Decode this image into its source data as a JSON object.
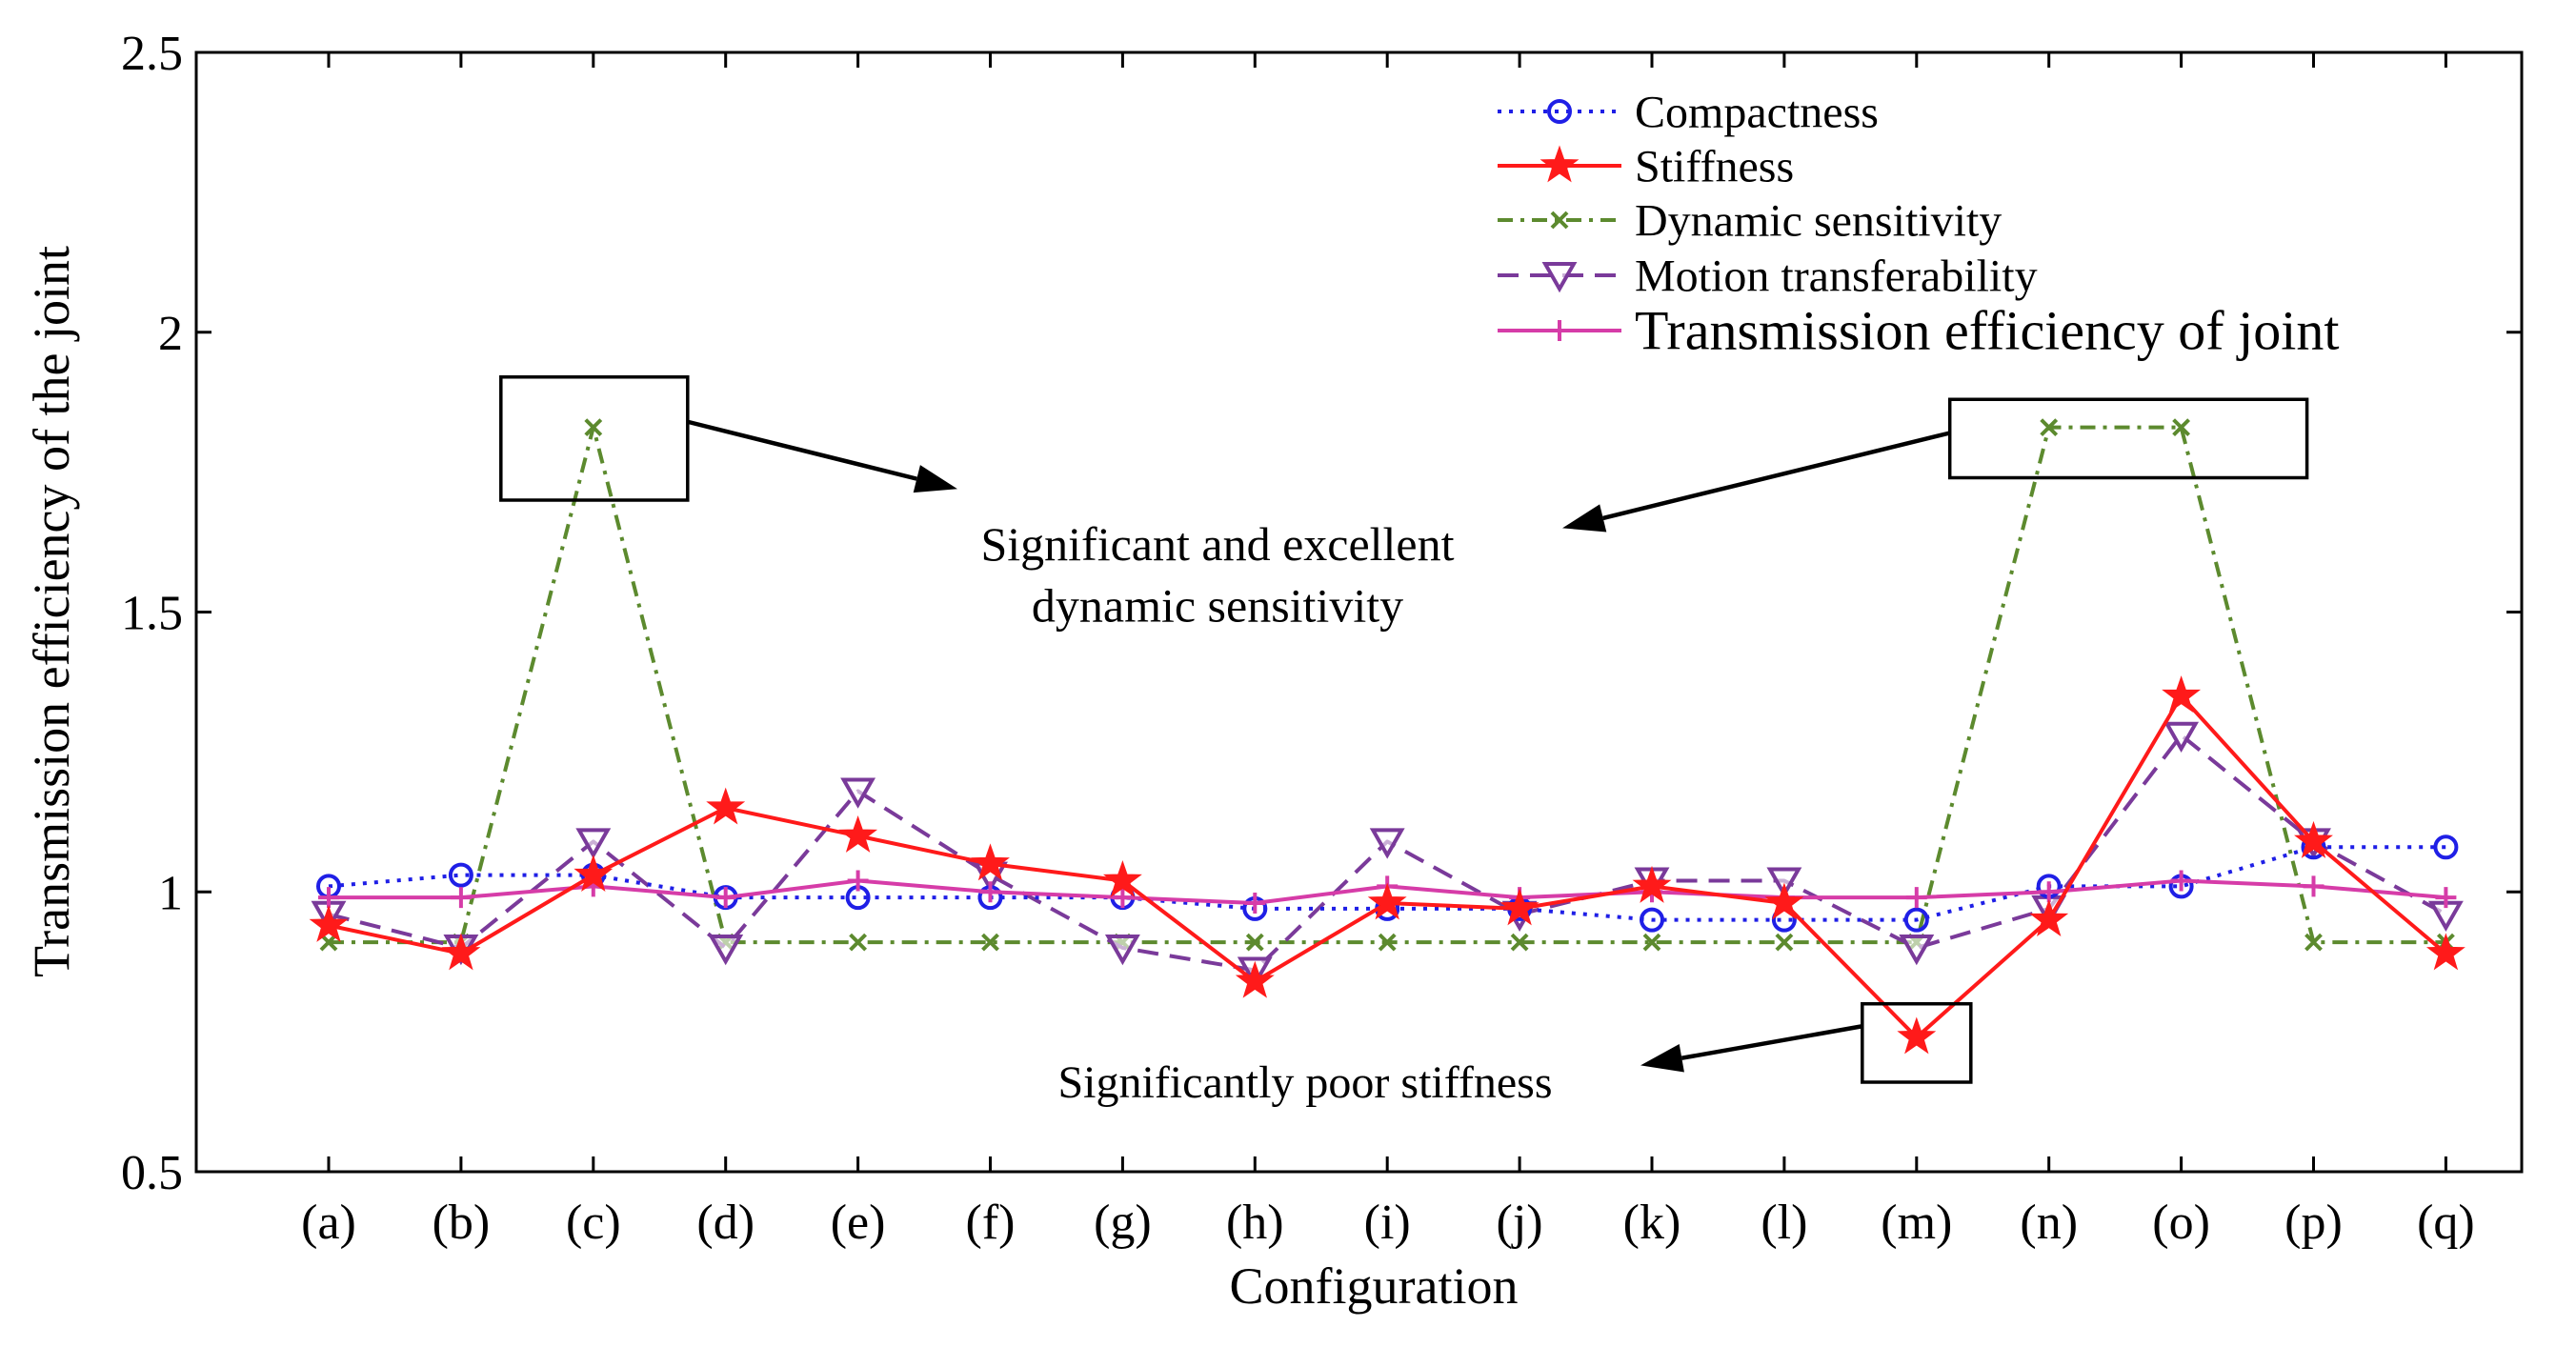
{
  "chart_data": {
    "type": "line",
    "title": "",
    "xlabel": "Configuration",
    "ylabel": "Transmission efficiency of the joint",
    "ylim": [
      0.5,
      2.5
    ],
    "yticks": [
      "0.5",
      "1",
      "1.5",
      "2",
      "2.5"
    ],
    "categories": [
      "(a)",
      "(b)",
      "(c)",
      "(d)",
      "(e)",
      "(f)",
      "(g)",
      "(h)",
      "(i)",
      "(j)",
      "(k)",
      "(l)",
      "(m)",
      "(n)",
      "(o)",
      "(p)",
      "(q)"
    ],
    "legend_position": "top-right",
    "series": [
      {
        "name": "Compactness",
        "color": "#1f1fe6",
        "marker": "circle",
        "line": "dotted",
        "values": [
          1.01,
          1.03,
          1.03,
          0.99,
          0.99,
          0.99,
          0.99,
          0.97,
          0.97,
          0.97,
          0.95,
          0.95,
          0.95,
          1.01,
          1.01,
          1.08,
          1.08
        ]
      },
      {
        "name": "Stiffness",
        "color": "#ff1a1a",
        "marker": "star",
        "line": "solid",
        "values": [
          0.94,
          0.89,
          1.03,
          1.15,
          1.1,
          1.05,
          1.02,
          0.84,
          0.98,
          0.97,
          1.01,
          0.98,
          0.74,
          0.95,
          1.35,
          1.09,
          0.89
        ]
      },
      {
        "name": "Dynamic sensitivity",
        "color": "#5c8a2e",
        "marker": "x",
        "line": "dashdot",
        "values": [
          0.91,
          0.91,
          1.83,
          0.91,
          0.91,
          0.91,
          0.91,
          0.91,
          0.91,
          0.91,
          0.91,
          0.91,
          0.91,
          1.83,
          1.83,
          0.91,
          0.91
        ]
      },
      {
        "name": "Motion transferability",
        "color": "#7a3a9a",
        "marker": "triangle-down",
        "line": "dashed",
        "values": [
          0.96,
          0.9,
          1.09,
          0.9,
          1.18,
          1.03,
          0.9,
          0.86,
          1.09,
          0.96,
          1.02,
          1.02,
          0.9,
          0.97,
          1.28,
          1.09,
          0.96
        ]
      },
      {
        "name": "Transmission efficiency of joint",
        "color": "#d63ca8",
        "marker": "plus",
        "line": "solid",
        "values": [
          0.99,
          0.99,
          1.01,
          0.99,
          1.02,
          1.0,
          0.99,
          0.98,
          1.01,
          0.99,
          1.0,
          0.99,
          0.99,
          1.0,
          1.02,
          1.01,
          0.99
        ]
      }
    ],
    "annotations": {
      "dynamic_line1": "Significant and excellent",
      "dynamic_line2": "dynamic sensitivity",
      "stiffness": "Significantly poor stiffness"
    }
  }
}
